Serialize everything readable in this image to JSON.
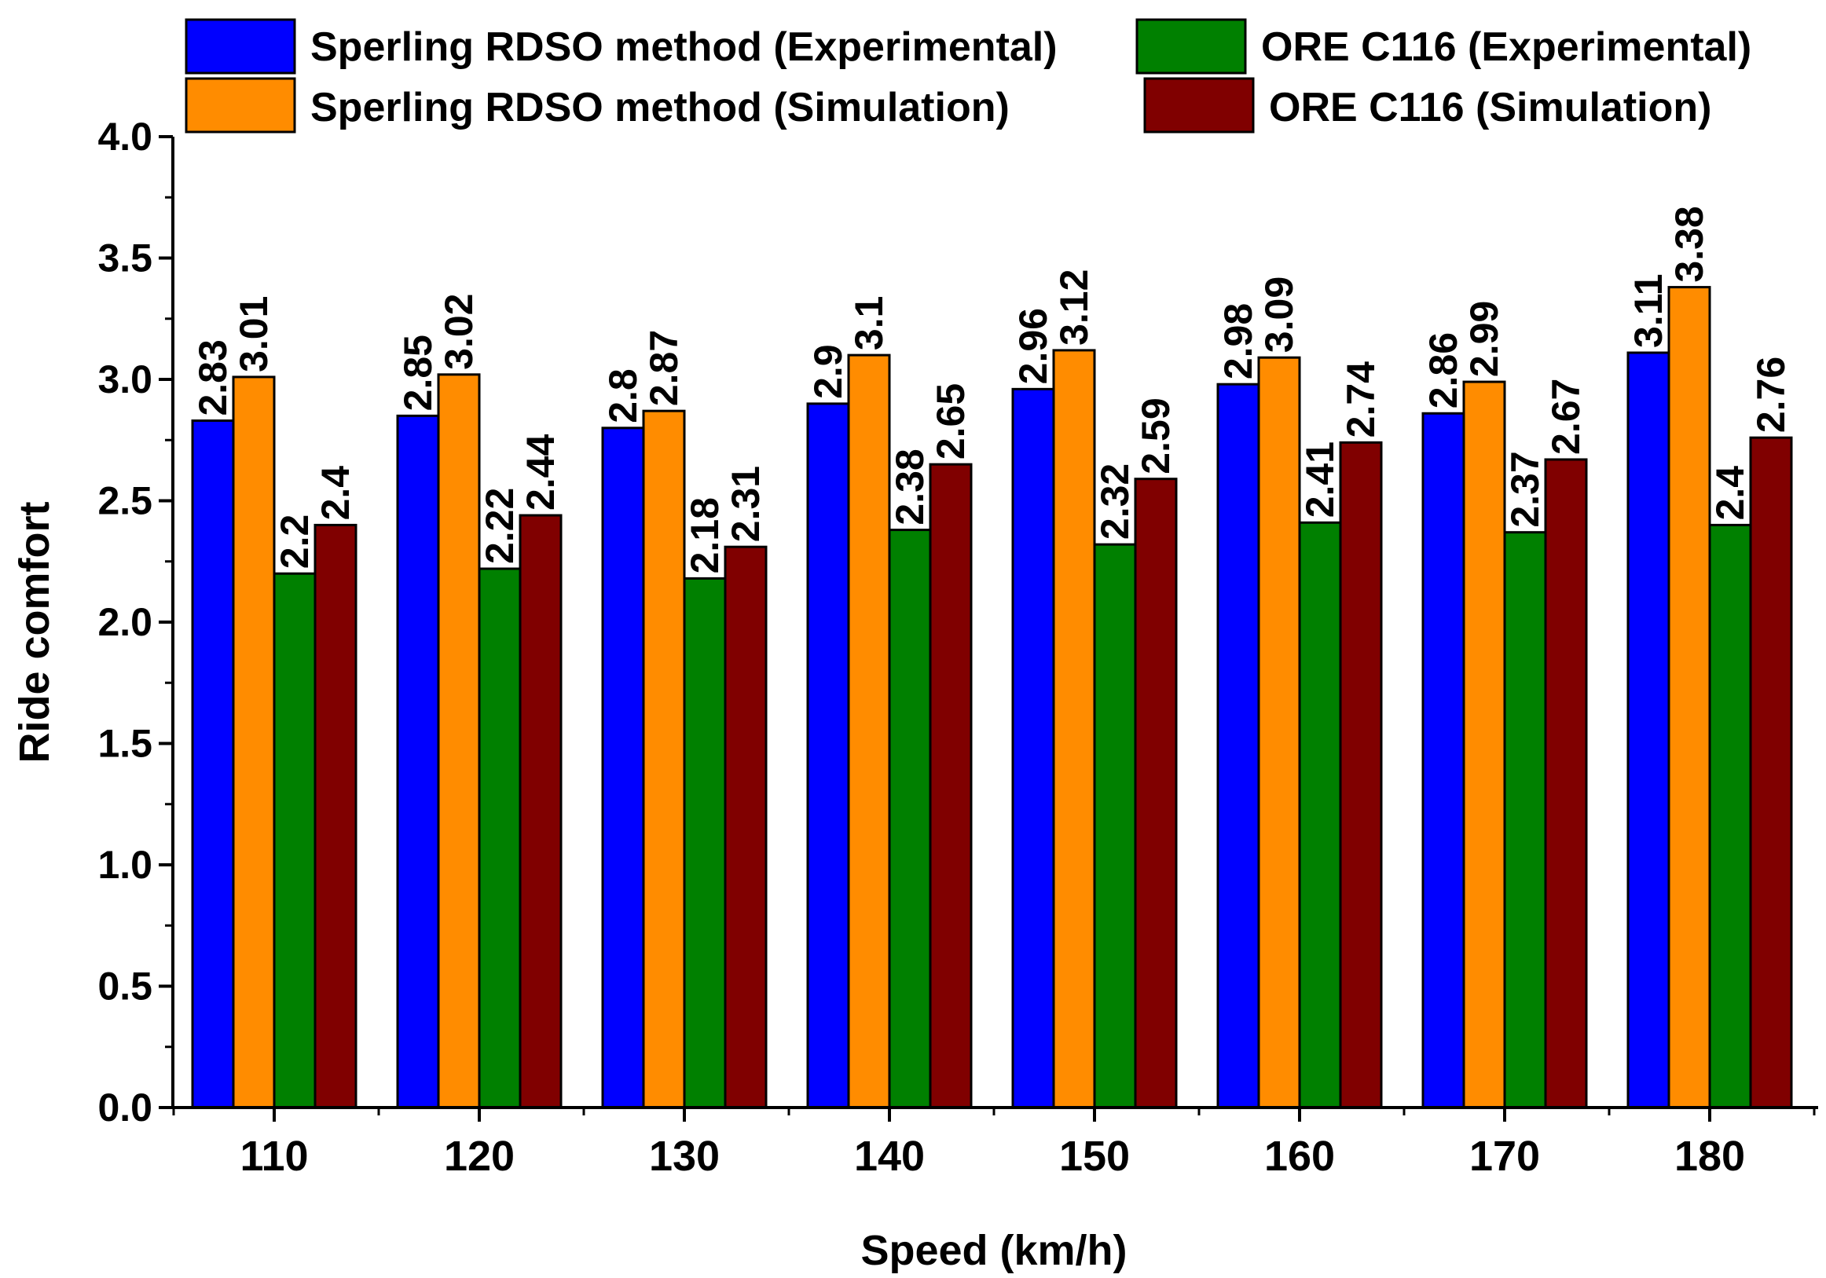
{
  "chart_data": {
    "type": "bar",
    "title": "",
    "xlabel": "Speed (km/h)",
    "ylabel": "Ride comfort",
    "categories": [
      "110",
      "120",
      "130",
      "140",
      "150",
      "160",
      "170",
      "180"
    ],
    "ylim": [
      0,
      4.0
    ],
    "yticks": [
      0.0,
      0.5,
      1.0,
      1.5,
      2.0,
      2.5,
      3.0,
      3.5,
      4.0
    ],
    "ytick_labels": [
      "0.0",
      "0.5",
      "1.0",
      "1.5",
      "2.0",
      "2.5",
      "3.0",
      "3.5",
      "4.0"
    ],
    "grid": false,
    "legend_position": "top",
    "series": [
      {
        "name": "Sperling RDSO method (Experimental)",
        "color": "#0000FF",
        "values": [
          2.83,
          2.85,
          2.8,
          2.9,
          2.96,
          2.98,
          2.86,
          3.11
        ],
        "labels": [
          "2.83",
          "2.85",
          "2.8",
          "2.9",
          "2.96",
          "2.98",
          "2.86",
          "3.11"
        ]
      },
      {
        "name": "Sperling RDSO method (Simulation)",
        "color": "#FF8C00",
        "values": [
          3.01,
          3.02,
          2.87,
          3.1,
          3.12,
          3.09,
          2.99,
          3.38
        ],
        "labels": [
          "3.01",
          "3.02",
          "2.87",
          "3.1",
          "3.12",
          "3.09",
          "2.99",
          "3.38"
        ]
      },
      {
        "name": "ORE C116 (Experimental)",
        "color": "#008000",
        "values": [
          2.2,
          2.22,
          2.18,
          2.38,
          2.32,
          2.41,
          2.37,
          2.4
        ],
        "labels": [
          "2.2",
          "2.22",
          "2.18",
          "2.38",
          "2.32",
          "2.41",
          "2.37",
          "2.4"
        ]
      },
      {
        "name": "ORE C116 (Simulation)",
        "color": "#800000",
        "values": [
          2.4,
          2.44,
          2.31,
          2.65,
          2.59,
          2.74,
          2.67,
          2.76
        ],
        "labels": [
          "2.4",
          "2.44",
          "2.31",
          "2.65",
          "2.59",
          "2.74",
          "2.67",
          "2.76"
        ]
      }
    ]
  }
}
